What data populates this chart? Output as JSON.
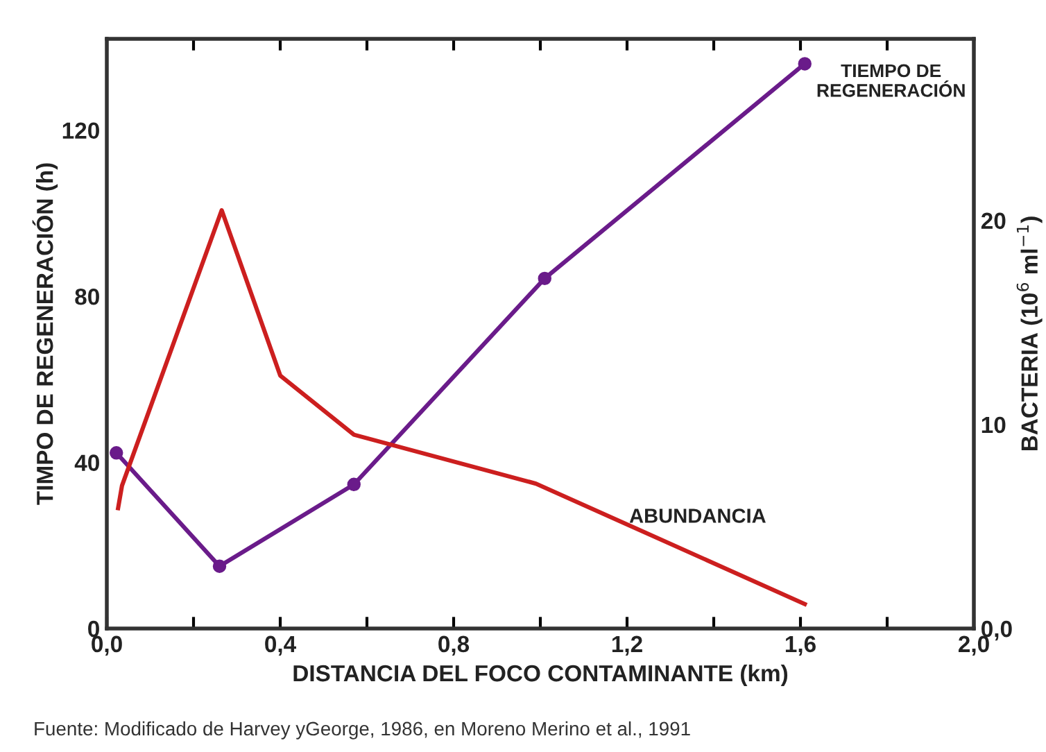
{
  "chart_data": {
    "type": "line",
    "xlabel": "DISTANCIA DEL FOCO CONTAMINANTE (km)",
    "ylabel": "TIMPO DE REGENERACIÓN (h)",
    "y2label": "BACTERIA (10$^{6}$ ml$^{−1}$)",
    "xlim": [
      0,
      2.0
    ],
    "xticks": [
      {
        "value": 0,
        "label": "0,0"
      },
      {
        "value": 0.2,
        "label": null
      },
      {
        "value": 0.4,
        "label": "0,4"
      },
      {
        "value": 0.6,
        "label": null
      },
      {
        "value": 0.8,
        "label": "0,8"
      },
      {
        "value": 1.0,
        "label": null
      },
      {
        "value": 1.2,
        "label": "1,2"
      },
      {
        "value": 1.4,
        "label": null
      },
      {
        "value": 1.6,
        "label": "1,6"
      },
      {
        "value": 1.8,
        "label": null
      },
      {
        "value": 2.0,
        "label": "2,0"
      }
    ],
    "ylim": [
      0,
      142
    ],
    "yticks": [
      0,
      40,
      80,
      120
    ],
    "y2lim": [
      0,
      28.9
    ],
    "y2ticks": [
      {
        "value": 0,
        "label": "0,0"
      },
      10,
      20
    ],
    "grid": false,
    "legend": false,
    "line_style": "solid",
    "series": [
      {
        "name": "TIEMPO DE\nREGENERACIÓN",
        "color": "#6a1b8a",
        "marker": "circle",
        "x": [
          0.022,
          0.26,
          0.57,
          1.01,
          1.61
        ],
        "values": [
          42.3,
          15,
          34.7,
          84.3,
          136
        ]
      },
      {
        "name": "ABUNDANCIA",
        "color": "#cc1f1f",
        "marker": "none",
        "axis": "y2",
        "x": [
          0.026,
          0.035,
          0.265,
          0.4,
          0.57,
          0.99,
          1.61
        ],
        "values": [
          5.9,
          7.0,
          20.5,
          12.4,
          9.5,
          7.1,
          1.2
        ]
      }
    ],
    "annotations": [
      "Fuente: Modificado de Harvey yGeorge, 1986, en Moreno Merino et al., 1991"
    ]
  }
}
